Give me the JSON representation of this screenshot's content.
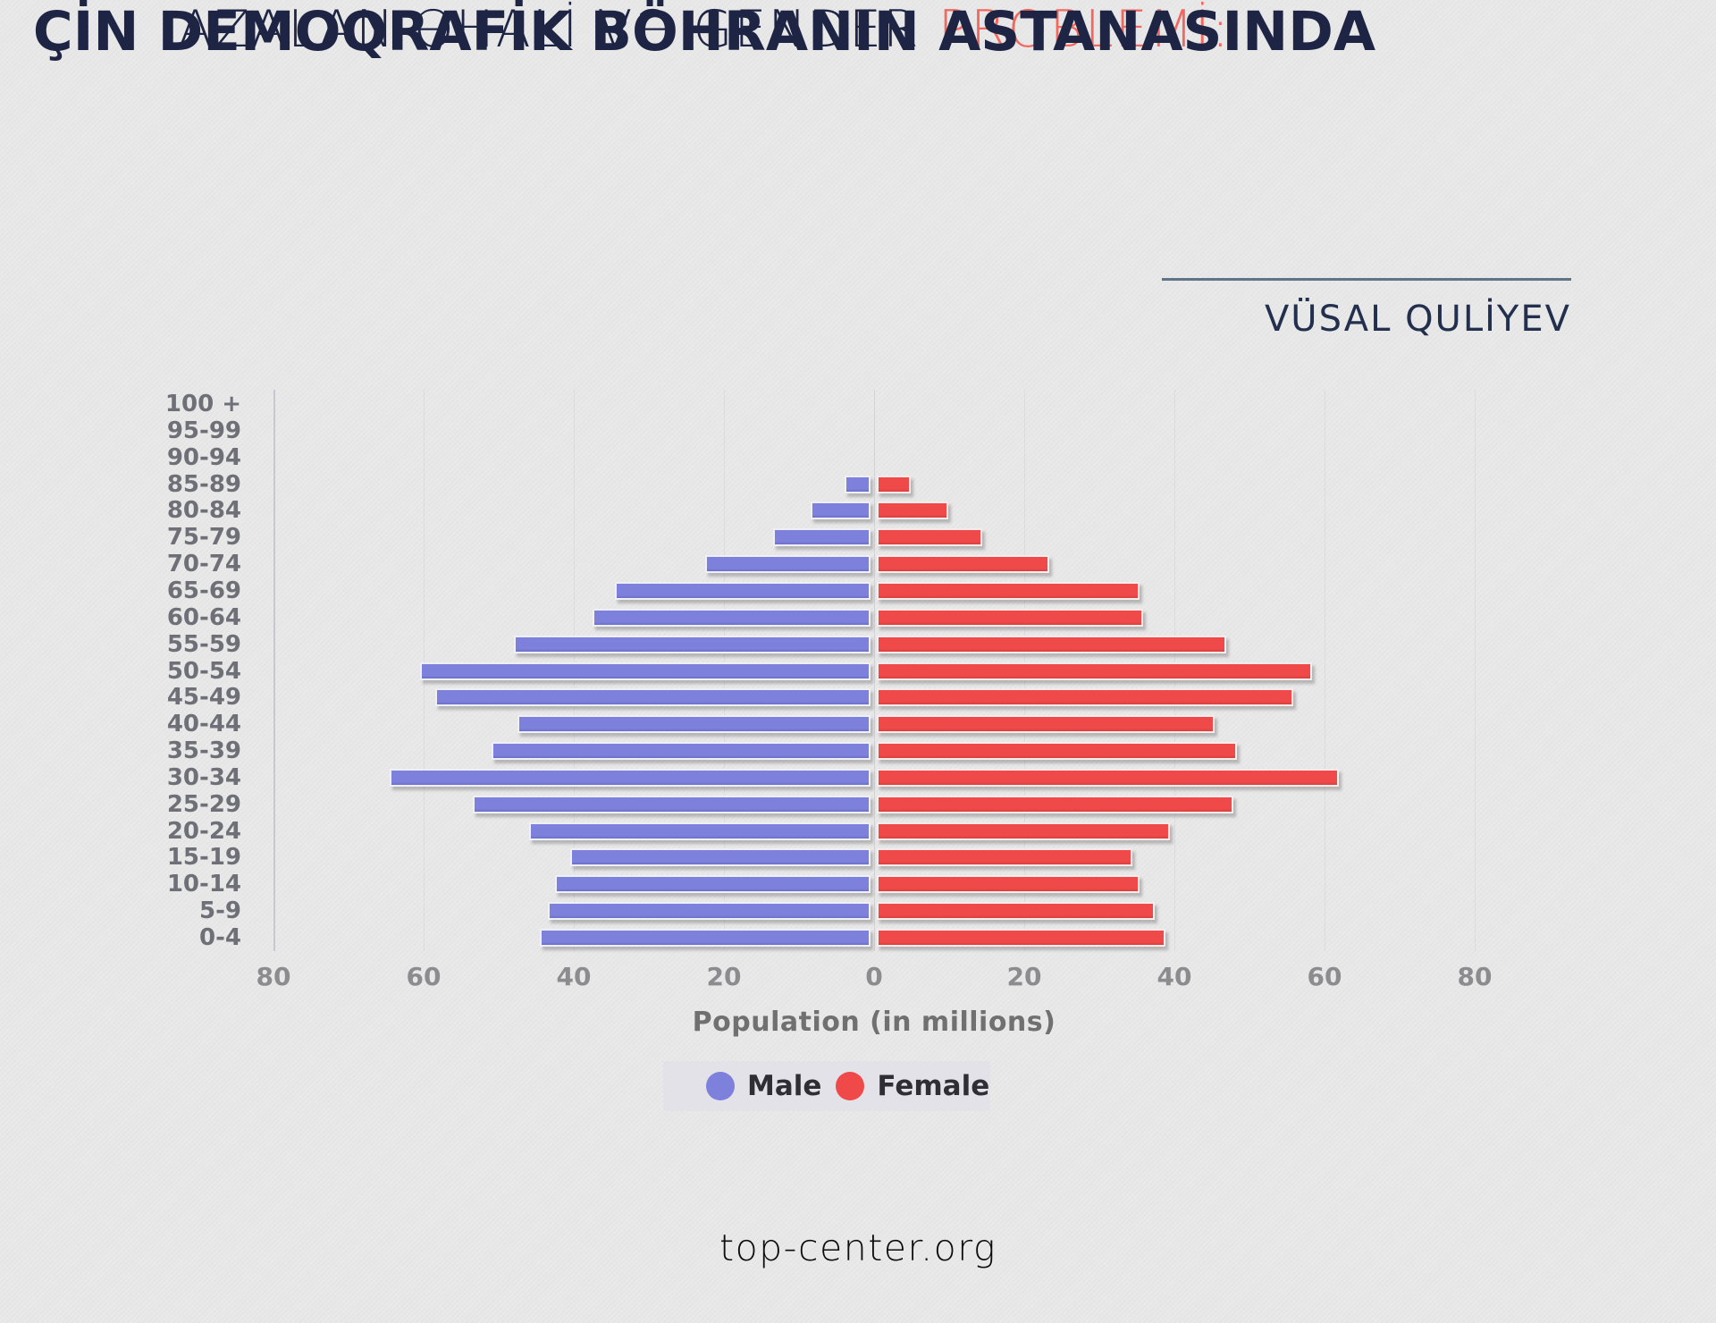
{
  "title": {
    "line1_normal": "AZALAN ƏHALİ VƏ GENDER ",
    "line1_accent": "PROBLEMİ:",
    "line2": "ÇİN DEMOQRAFİK BÖHRANIN ASTANASINDA",
    "author": "VÜSAL QULİYEV"
  },
  "footer": {
    "website": "top-center.org"
  },
  "colors": {
    "male": "#7e81dc",
    "female": "#ef4a49",
    "accent": "#f2685f",
    "navy": "#1e2544",
    "background": "#e9e9e9"
  },
  "chart_data": {
    "type": "bar",
    "subtype": "population-pyramid",
    "xlabel": "Population (in millions)",
    "x_ticks": [
      80,
      60,
      40,
      20,
      0,
      20,
      40,
      60,
      80
    ],
    "xlim": [
      -80,
      80
    ],
    "grid": "faint-vertical",
    "legend_position": "bottom",
    "legend": [
      "Male",
      "Female"
    ],
    "age_groups": [
      "100 +",
      "95-99",
      "90-94",
      "85-89",
      "80-84",
      "75-79",
      "70-74",
      "65-69",
      "60-64",
      "55-59",
      "50-54",
      "45-49",
      "40-44",
      "35-39",
      "30-34",
      "25-29",
      "20-24",
      "15-19",
      "10-14",
      "5-9",
      "0-4"
    ],
    "series": [
      {
        "name": "Male",
        "color": "#7e81dc",
        "values": [
          0,
          0,
          0,
          3.5,
          8,
          13,
          22,
          34,
          37,
          47.5,
          60,
          58,
          47,
          50.5,
          64,
          53,
          45.5,
          40,
          42,
          43,
          44
        ]
      },
      {
        "name": "Female",
        "color": "#ef4a49",
        "values": [
          0,
          0,
          0,
          4.5,
          9.5,
          14,
          23,
          35,
          35.5,
          46.5,
          58,
          55.5,
          45,
          48,
          61.5,
          47.5,
          39,
          34,
          35,
          37,
          38.5
        ]
      }
    ]
  }
}
